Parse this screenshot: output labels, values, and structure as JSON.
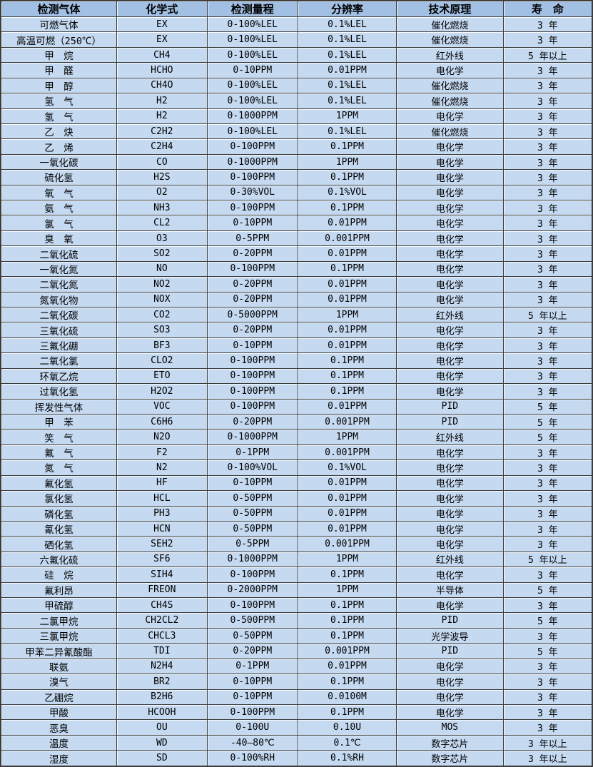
{
  "colors": {
    "header_bg": "#a2c0e4",
    "row_bg": "#c5d9f1",
    "border": "#3c3c3c",
    "text": "#000000"
  },
  "table": {
    "headers": [
      "检测气体",
      "化学式",
      "检测量程",
      "分辨率",
      "技术原理",
      "寿　命"
    ],
    "rows": [
      [
        "可燃气体",
        "EX",
        "0-100%LEL",
        "0.1%LEL",
        "催化燃烧",
        "3 年"
      ],
      [
        "高温可燃（250℃）",
        "EX",
        "0-100%LEL",
        "0.1%LEL",
        "催化燃烧",
        "3 年"
      ],
      [
        "甲　烷",
        "CH4",
        "0-100%LEL",
        "0.1%LEL",
        "红外线",
        "5 年以上"
      ],
      [
        "甲　醛",
        "HCHO",
        "0-10PPM",
        "0.01PPM",
        "电化学",
        "3 年"
      ],
      [
        "甲　醇",
        "CH4O",
        "0-100%LEL",
        "0.1%LEL",
        "催化燃烧",
        "3 年"
      ],
      [
        "氢　气",
        "H2",
        "0-100%LEL",
        "0.1%LEL",
        "催化燃烧",
        "3 年"
      ],
      [
        "氢　气",
        "H2",
        "0-1000PPM",
        "1PPM",
        "电化学",
        "3 年"
      ],
      [
        "乙　炔",
        "C2H2",
        "0-100%LEL",
        "0.1%LEL",
        "催化燃烧",
        "3 年"
      ],
      [
        "乙　烯",
        "C2H4",
        "0-100PPM",
        "0.1PPM",
        "电化学",
        "3 年"
      ],
      [
        "一氧化碳",
        "CO",
        "0-1000PPM",
        "1PPM",
        "电化学",
        "3 年"
      ],
      [
        "硫化氢",
        "H2S",
        "0-100PPM",
        "0.1PPM",
        "电化学",
        "3 年"
      ],
      [
        "氧　气",
        "O2",
        "0-30%VOL",
        "0.1%VOL",
        "电化学",
        "3 年"
      ],
      [
        "氨　气",
        "NH3",
        "0-100PPM",
        "0.1PPM",
        "电化学",
        "3 年"
      ],
      [
        "氯　气",
        "CL2",
        "0-10PPM",
        "0.01PPM",
        "电化学",
        "3 年"
      ],
      [
        "臭　氧",
        "O3",
        "0-5PPM",
        "0.001PPM",
        "电化学",
        "3 年"
      ],
      [
        "二氧化硫",
        "SO2",
        "0-20PPM",
        "0.01PPM",
        "电化学",
        "3 年"
      ],
      [
        "一氧化氮",
        "NO",
        "0-100PPM",
        "0.1PPM",
        "电化学",
        "3 年"
      ],
      [
        "二氧化氮",
        "NO2",
        "0-20PPM",
        "0.01PPM",
        "电化学",
        "3 年"
      ],
      [
        "氮氧化物",
        "NOX",
        "0-20PPM",
        "0.01PPM",
        "电化学",
        "3 年"
      ],
      [
        "二氧化碳",
        "CO2",
        "0-5000PPM",
        "1PPM",
        "红外线",
        "5 年以上"
      ],
      [
        "三氧化硫",
        "SO3",
        "0-20PPM",
        "0.01PPM",
        "电化学",
        "3 年"
      ],
      [
        "三氟化硼",
        "BF3",
        "0-10PPM",
        "0.01PPM",
        "电化学",
        "3 年"
      ],
      [
        "二氧化氯",
        "CLO2",
        "0-100PPM",
        "0.1PPM",
        "电化学",
        "3 年"
      ],
      [
        "环氧乙烷",
        "ETO",
        "0-100PPM",
        "0.1PPM",
        "电化学",
        "3 年"
      ],
      [
        "过氧化氢",
        "H2O2",
        "0-100PPM",
        "0.1PPM",
        "电化学",
        "3 年"
      ],
      [
        "挥发性气体",
        "VOC",
        "0-100PPM",
        "0.01PPM",
        "PID",
        "5 年"
      ],
      [
        "甲　苯",
        "C6H6",
        "0-20PPM",
        "0.001PPM",
        "PID",
        "5 年"
      ],
      [
        "笑　气",
        "N2O",
        "0-1000PPM",
        "1PPM",
        "红外线",
        "5 年"
      ],
      [
        "氟　气",
        "F2",
        "0-1PPM",
        "0.001PPM",
        "电化学",
        "3 年"
      ],
      [
        "氮　气",
        "N2",
        "0-100%VOL",
        "0.1%VOL",
        "电化学",
        "3 年"
      ],
      [
        "氟化氢",
        "HF",
        "0-10PPM",
        "0.01PPM",
        "电化学",
        "3 年"
      ],
      [
        "氯化氢",
        "HCL",
        "0-50PPM",
        "0.01PPM",
        "电化学",
        "3 年"
      ],
      [
        "磷化氢",
        "PH3",
        "0-50PPM",
        "0.01PPM",
        "电化学",
        "3 年"
      ],
      [
        "氰化氢",
        "HCN",
        "0-50PPM",
        "0.01PPM",
        "电化学",
        "3 年"
      ],
      [
        "硒化氢",
        "SEH2",
        "0-5PPM",
        "0.001PPM",
        "电化学",
        "3 年"
      ],
      [
        "六氟化硫",
        "SF6",
        "0-1000PPM",
        "1PPM",
        "红外线",
        "5 年以上"
      ],
      [
        "硅　烷",
        "SIH4",
        "0-100PPM",
        "0.1PPM",
        "电化学",
        "3 年"
      ],
      [
        "氟利昂",
        "FREON",
        "0-2000PPM",
        "1PPM",
        "半导体",
        "5 年"
      ],
      [
        "甲硫醇",
        "CH4S",
        "0-100PPM",
        "0.1PPM",
        "电化学",
        "3 年"
      ],
      [
        "二氯甲烷",
        "CH2CL2",
        "0-500PPM",
        "0.1PPM",
        "PID",
        "5 年"
      ],
      [
        "三氯甲烷",
        "CHCL3",
        "0-50PPM",
        "0.1PPM",
        "光学波导",
        "3 年"
      ],
      [
        "甲苯二异氰酸酯",
        "TDI",
        "0-20PPM",
        "0.001PPM",
        "PID",
        "5 年"
      ],
      [
        "联氨",
        "N2H4",
        "0-1PPM",
        "0.01PPM",
        "电化学",
        "3 年"
      ],
      [
        "溴气",
        "BR2",
        "0-10PPM",
        "0.1PPM",
        "电化学",
        "3 年"
      ],
      [
        "乙硼烷",
        "B2H6",
        "0-10PPM",
        "0.0100M",
        "电化学",
        "3 年"
      ],
      [
        "甲酸",
        "HCOOH",
        "0-100PPM",
        "0.1PPM",
        "电化学",
        "3 年"
      ],
      [
        "恶臭",
        "OU",
        "0-100U",
        "0.10U",
        "MOS",
        "3 年"
      ],
      [
        "温度",
        "WD",
        "-40—80℃",
        "0.1℃",
        "数字芯片",
        "3 年以上"
      ],
      [
        "湿度",
        "SD",
        "0-100%RH",
        "0.1%RH",
        "数字芯片",
        "3 年以上"
      ]
    ]
  }
}
